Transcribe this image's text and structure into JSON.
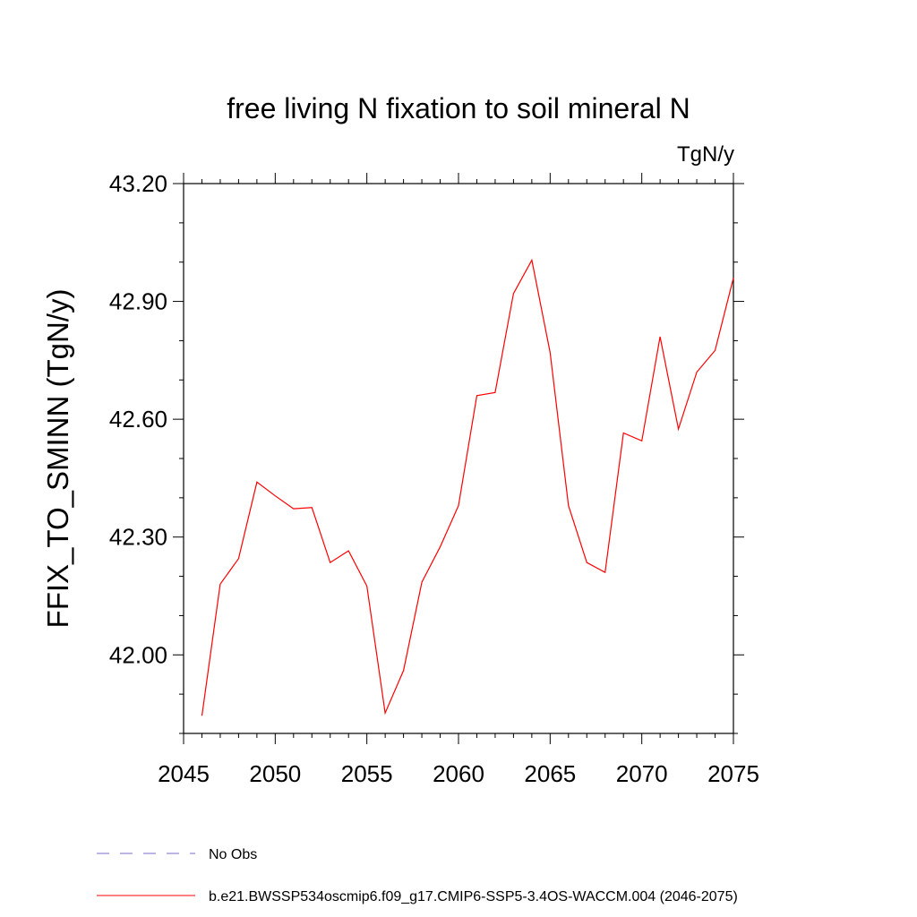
{
  "chart_data": {
    "type": "line",
    "title": "free living N fixation to soil mineral N",
    "units": "TgN/y",
    "ylabel": "FFIX_TO_SMINN  (TgN/y)",
    "xlabel": "",
    "xlim": [
      2045,
      2075
    ],
    "ylim": [
      41.8,
      43.2
    ],
    "x_ticks": [
      2045,
      2050,
      2055,
      2060,
      2065,
      2070,
      2075
    ],
    "x_tick_labels": [
      "2045",
      "2050",
      "2055",
      "2060",
      "2065",
      "2070",
      "2075"
    ],
    "y_ticks": [
      42.0,
      42.3,
      42.6,
      42.9,
      43.2
    ],
    "y_tick_labels": [
      "42.00",
      "42.30",
      "42.60",
      "42.90",
      "43.20"
    ],
    "grid": false,
    "legend_position": "bottom-left",
    "series": [
      {
        "name": "b.e21.BWSSP534oscmip6.f09_g17.CMIP6-SSP5-3.4OS-WACCM.004 (2046-2075)",
        "color": "#ff0000",
        "style": "solid",
        "x": [
          2046,
          2047,
          2048,
          2049,
          2050,
          2051,
          2052,
          2053,
          2054,
          2055,
          2056,
          2057,
          2058,
          2059,
          2060,
          2061,
          2062,
          2063,
          2064,
          2065,
          2066,
          2067,
          2068,
          2069,
          2070,
          2071,
          2072,
          2073,
          2074,
          2075
        ],
        "values": [
          41.845,
          42.18,
          42.245,
          42.44,
          42.405,
          42.372,
          42.375,
          42.235,
          42.265,
          42.175,
          41.852,
          41.96,
          42.185,
          42.275,
          42.38,
          42.66,
          42.668,
          42.92,
          43.005,
          42.77,
          42.38,
          42.235,
          42.21,
          42.565,
          42.545,
          42.81,
          42.575,
          42.72,
          42.775,
          42.96
        ]
      }
    ],
    "legend": [
      {
        "label": "No Obs",
        "color": "#7b6cc9",
        "style": "dashed"
      },
      {
        "label": "b.e21.BWSSP534oscmip6.f09_g17.CMIP6-SSP5-3.4OS-WACCM.004 (2046-2075)",
        "color": "#ff0000",
        "style": "solid"
      }
    ]
  }
}
